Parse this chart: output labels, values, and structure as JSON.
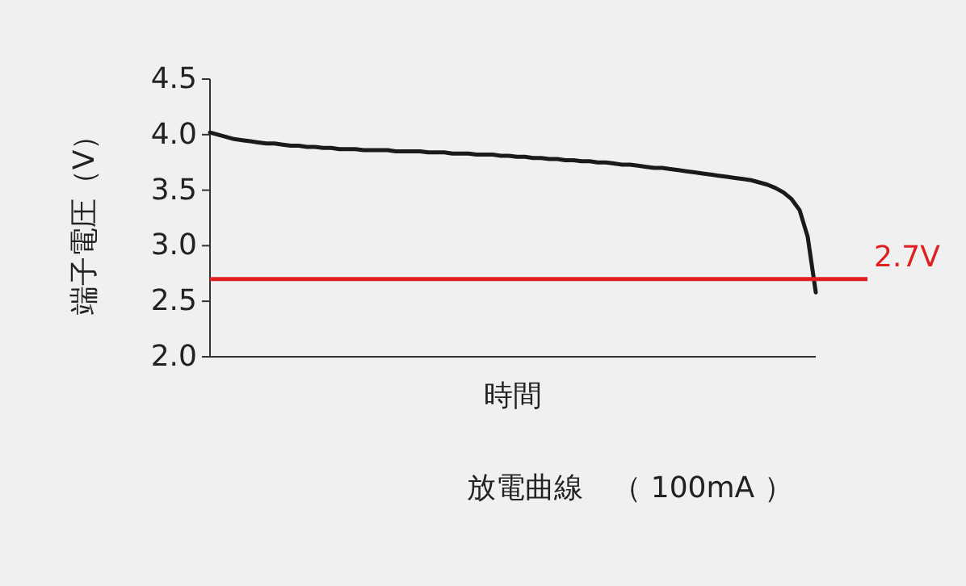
{
  "chart_data": {
    "type": "line",
    "title": "放電曲線　（ 100mA ）",
    "xlabel": "時間",
    "ylabel": "端子電圧（V）",
    "categories": [
      null,
      null,
      null,
      null,
      null,
      null,
      null,
      null,
      null,
      null,
      null,
      null,
      null,
      null,
      null,
      null,
      null,
      null,
      null,
      null,
      null,
      null,
      null,
      null,
      null,
      null,
      null,
      null,
      null,
      null,
      null,
      null,
      null,
      null,
      null,
      null,
      null,
      null,
      null,
      null,
      null,
      null,
      null,
      null,
      null,
      null,
      null,
      null,
      null,
      null,
      null,
      null,
      null,
      null,
      null,
      null,
      null,
      null,
      null,
      null,
      null,
      null,
      null,
      null,
      null,
      null,
      null,
      null,
      null,
      null,
      null,
      null,
      null,
      null,
      null,
      null
    ],
    "series": [
      {
        "color": "#1a1a1a",
        "values": [
          4.02,
          4.0,
          3.98,
          3.96,
          3.95,
          3.94,
          3.93,
          3.92,
          3.92,
          3.91,
          3.9,
          3.9,
          3.89,
          3.89,
          3.88,
          3.88,
          3.87,
          3.87,
          3.87,
          3.86,
          3.86,
          3.86,
          3.86,
          3.85,
          3.85,
          3.85,
          3.85,
          3.84,
          3.84,
          3.84,
          3.83,
          3.83,
          3.83,
          3.82,
          3.82,
          3.82,
          3.81,
          3.81,
          3.8,
          3.8,
          3.79,
          3.79,
          3.78,
          3.78,
          3.77,
          3.77,
          3.76,
          3.76,
          3.75,
          3.75,
          3.74,
          3.73,
          3.73,
          3.72,
          3.71,
          3.7,
          3.7,
          3.69,
          3.68,
          3.67,
          3.66,
          3.65,
          3.64,
          3.63,
          3.62,
          3.61,
          3.6,
          3.59,
          3.57,
          3.55,
          3.52,
          3.48,
          3.42,
          3.32,
          3.08,
          2.58
        ]
      }
    ],
    "ylim": [
      2.0,
      4.5
    ],
    "yticks": [
      {
        "value": 2.0,
        "label": "2.0"
      },
      {
        "value": 2.5,
        "label": "2.5"
      },
      {
        "value": 3.0,
        "label": "3.0"
      },
      {
        "value": 3.5,
        "label": "3.5"
      },
      {
        "value": 4.0,
        "label": "4.0"
      },
      {
        "value": 4.5,
        "label": "4.5"
      }
    ],
    "tick_labels": "y",
    "ref_lines": [
      {
        "axis": "y",
        "value": 2.7,
        "label": "2.7V",
        "color": "#e02020"
      }
    ]
  }
}
